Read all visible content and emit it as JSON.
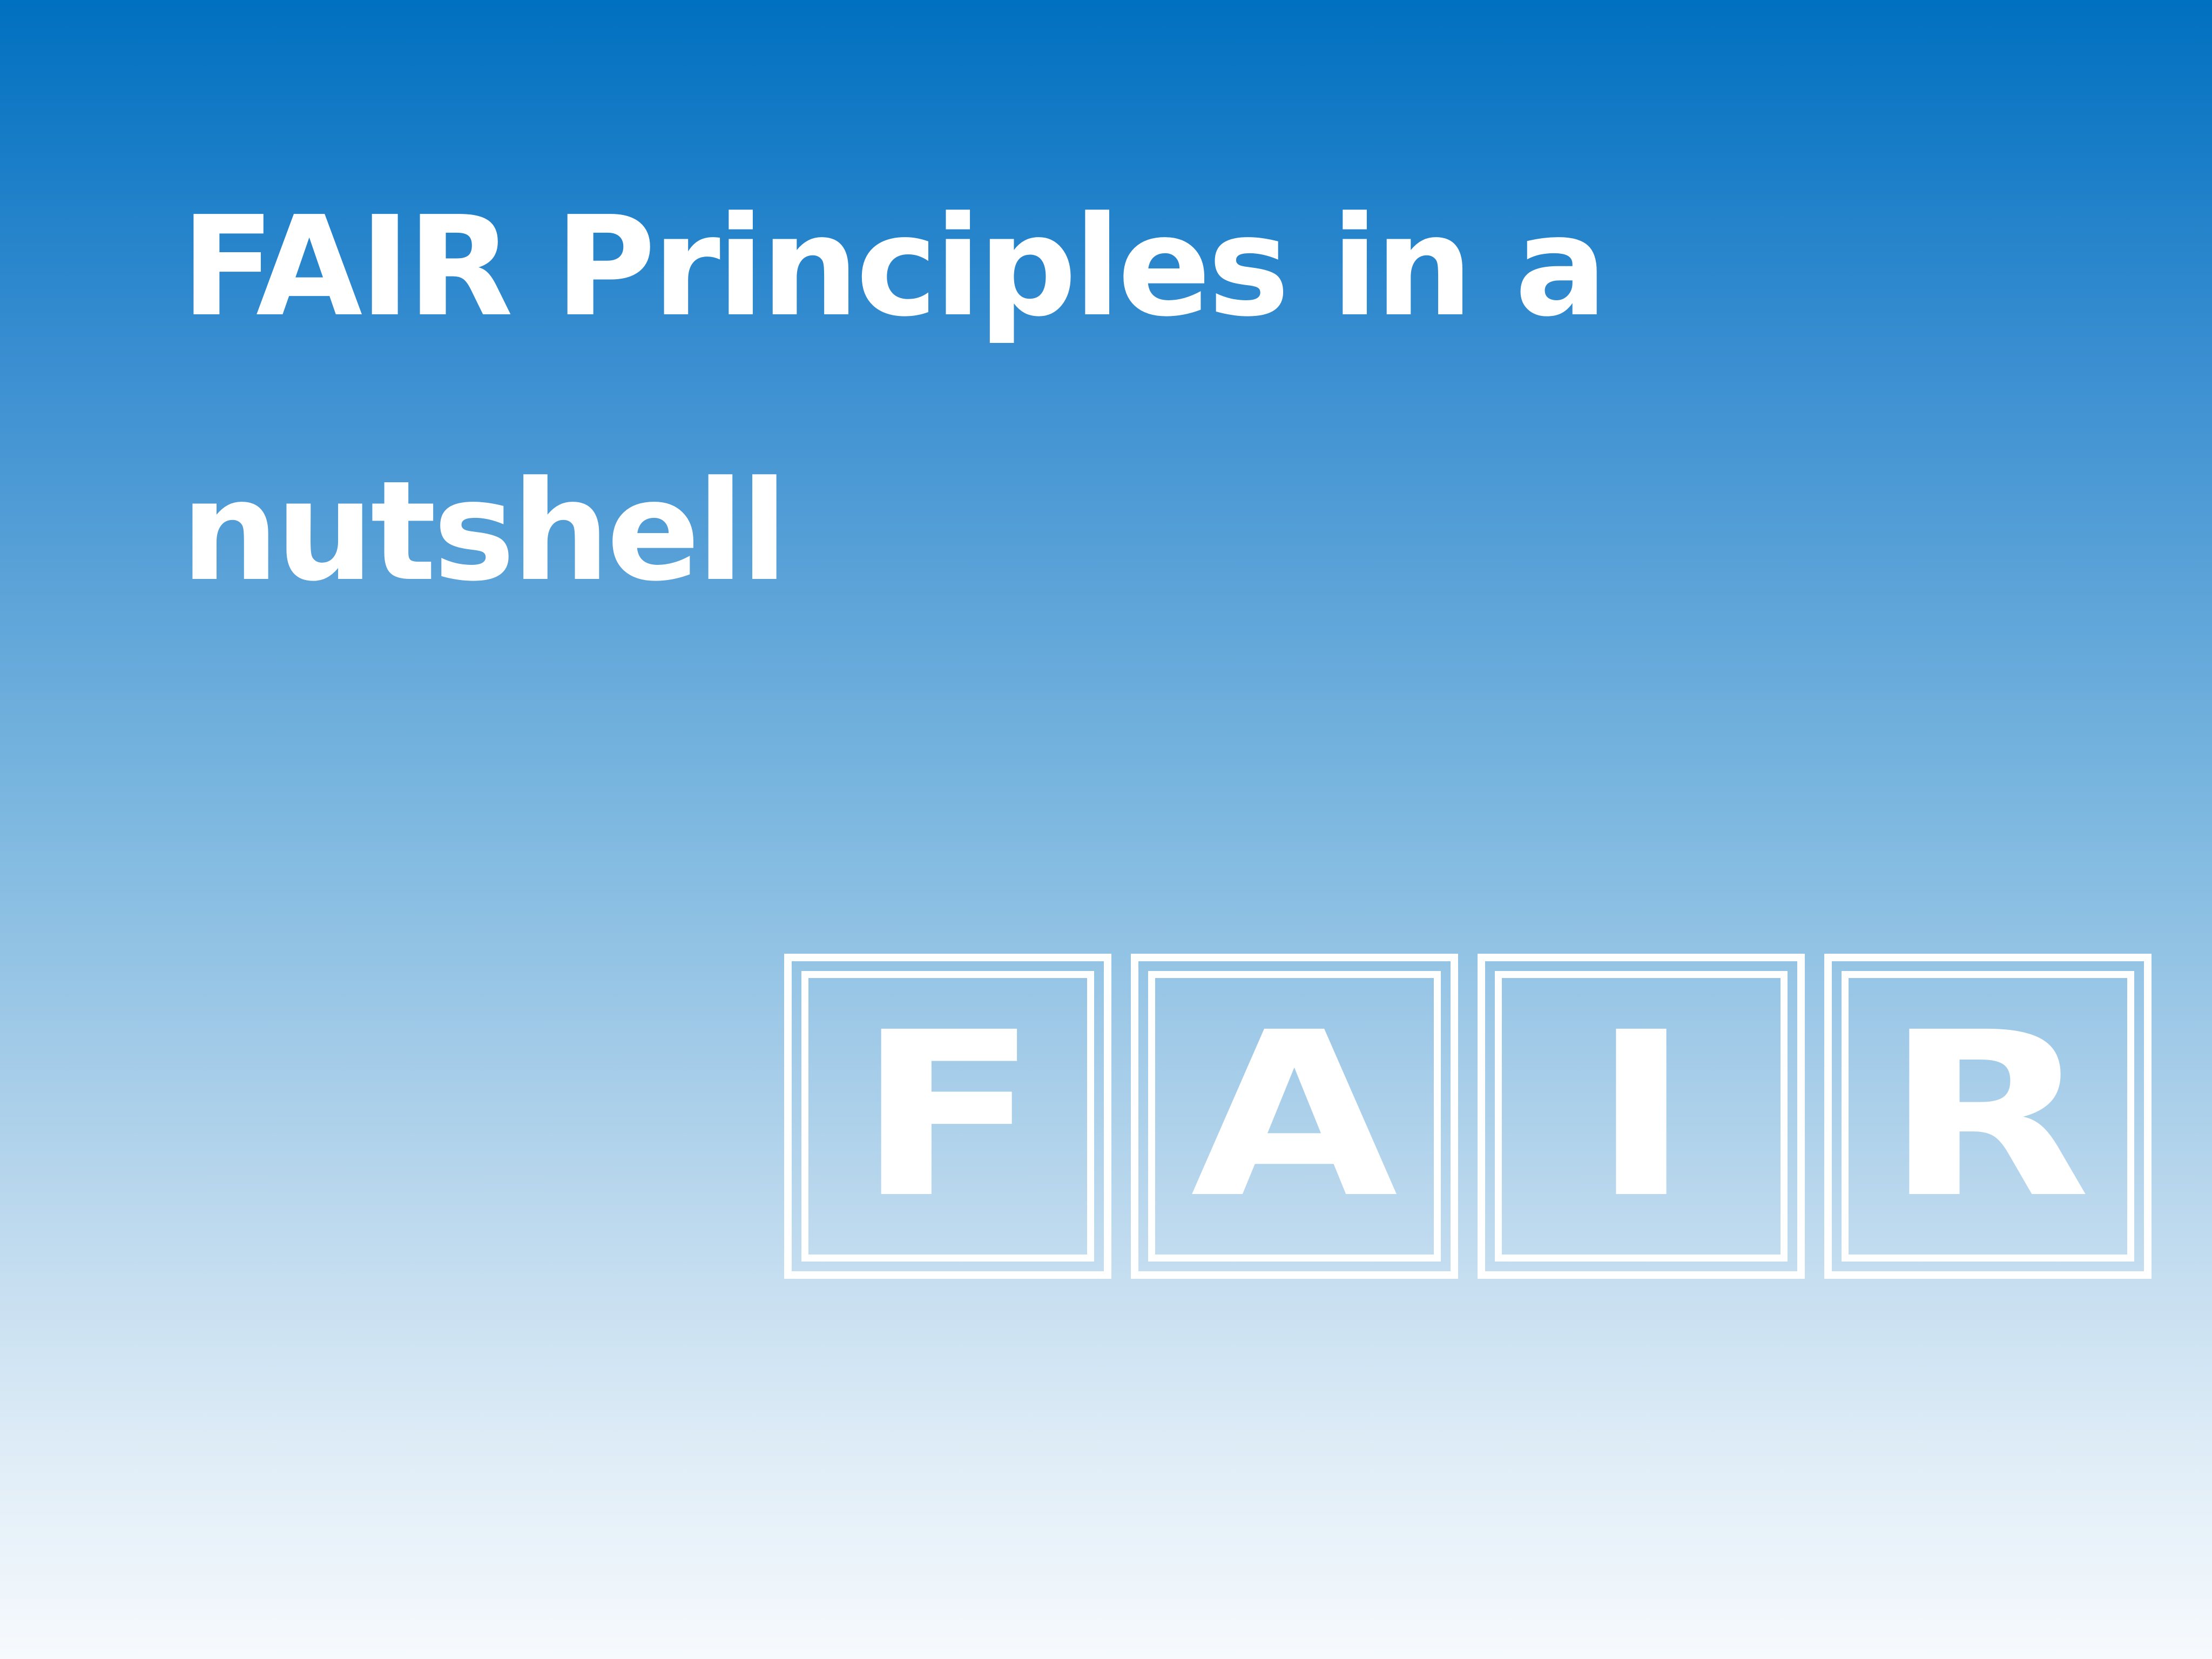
{
  "title": "FAIR Principles in a nutshell",
  "tiles": [
    "F",
    "A",
    "I",
    "R"
  ],
  "colors": {
    "gradient_top": "#0070c0",
    "gradient_bottom": "#f6fafd",
    "text": "#ffffff"
  }
}
